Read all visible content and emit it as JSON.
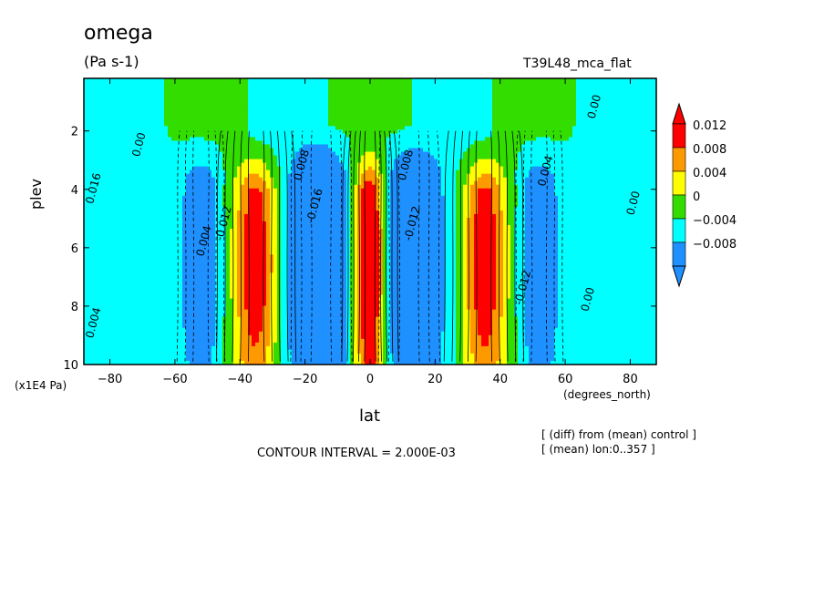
{
  "chart_data": {
    "type": "heatmap",
    "title": "omega",
    "units": "(Pa s-1)",
    "run_label": "T39L48_mca_flat",
    "xlabel": "lat",
    "xunits": "(degrees_north)",
    "ylabel": "plev",
    "yunits": "(x1E4 Pa)",
    "x_ticks": [
      -80,
      -60,
      -40,
      -20,
      0,
      20,
      40,
      60,
      80
    ],
    "x_tick_labels": [
      "−80",
      "−60",
      "−40",
      "−20",
      "0",
      "20",
      "40",
      "60",
      "80"
    ],
    "y_ticks": [
      2,
      4,
      6,
      8,
      10
    ],
    "xlim": [
      -88,
      88
    ],
    "ylim": [
      10,
      0.2
    ],
    "contour_interval_text": "CONTOUR INTERVAL = 2.000E-03",
    "notes": [
      "[ (diff) from (mean) control ]",
      "[ (mean) lon:0..357 ]"
    ],
    "colorbar": {
      "levels": [
        "0.012",
        "0.008",
        "0.004",
        "0",
        "−0.004",
        "−0.008"
      ],
      "colors": [
        "#ff0000",
        "#ff9900",
        "#ffff00",
        "#33dd00",
        "#00ffff",
        "#1e90ff"
      ]
    },
    "features": [
      {
        "kind": "positive",
        "center_lat": 0,
        "width_deg": 5,
        "peak": 0.02
      },
      {
        "kind": "positive",
        "center_lat": -35,
        "width_deg": 7,
        "peak": 0.016
      },
      {
        "kind": "positive",
        "center_lat": 35,
        "width_deg": 7,
        "peak": 0.016
      },
      {
        "kind": "negative",
        "center_lat": -15,
        "width_deg": 9,
        "peak": -0.016
      },
      {
        "kind": "negative",
        "center_lat": 12,
        "width_deg": 9,
        "peak": -0.014
      },
      {
        "kind": "negative",
        "center_lat": -52,
        "width_deg": 7,
        "peak": -0.01
      },
      {
        "kind": "negative",
        "center_lat": 52,
        "width_deg": 7,
        "peak": -0.01
      }
    ],
    "contour_labels": [
      {
        "lat": -70,
        "plev": 2.5,
        "text": "0.00"
      },
      {
        "lat": 70,
        "plev": 1.2,
        "text": "0.00"
      },
      {
        "lat": 82,
        "plev": 4.5,
        "text": "0.00"
      },
      {
        "lat": 68,
        "plev": 7.8,
        "text": "0.00"
      },
      {
        "lat": -50,
        "plev": 5.8,
        "text": "0.004"
      },
      {
        "lat": -44,
        "plev": 5.2,
        "text": "-0.012"
      },
      {
        "lat": -16,
        "plev": 4.6,
        "text": "-0.016"
      },
      {
        "lat": -20,
        "plev": 3.2,
        "text": "0.008"
      },
      {
        "lat": 14,
        "plev": 5.2,
        "text": "-0.012"
      },
      {
        "lat": 12,
        "plev": 3.2,
        "text": "0.008"
      },
      {
        "lat": 55,
        "plev": 3.4,
        "text": "0.004"
      },
      {
        "lat": 48,
        "plev": 7.4,
        "text": "-0.012"
      },
      {
        "lat": -84,
        "plev": 4.0,
        "text": "0.016"
      },
      {
        "lat": -84,
        "plev": 8.6,
        "text": "0.004"
      }
    ]
  }
}
